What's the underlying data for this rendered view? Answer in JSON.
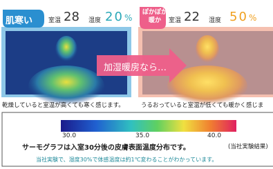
{
  "left": {
    "badge": "肌寒い",
    "room_label": "室温",
    "room_value": "28",
    "humidity_label": "湿度",
    "humidity_value": "20",
    "percent": "%",
    "caption": "乾燥していると室温が高くても寒く感じます。"
  },
  "right": {
    "badge_line1": "ぽかぽか",
    "badge_line2": "暖か",
    "room_label": "室温",
    "room_value": "22",
    "humidity_label": "湿度",
    "humidity_value": "50",
    "percent": "%",
    "caption": "うるおっていると室温が低くても暖かく感じま"
  },
  "arrow": "加湿暖房なら…",
  "legend": {
    "ticks": [
      "30.0",
      "35.0",
      "40.0"
    ],
    "note": "サーモグラフは入室30分後の皮膚表面温度分布です。",
    "source": "(当社実験結果)",
    "footnote": "当社実験で、湿度30%で体感温度は約1℃変わることがわかっています。"
  }
}
